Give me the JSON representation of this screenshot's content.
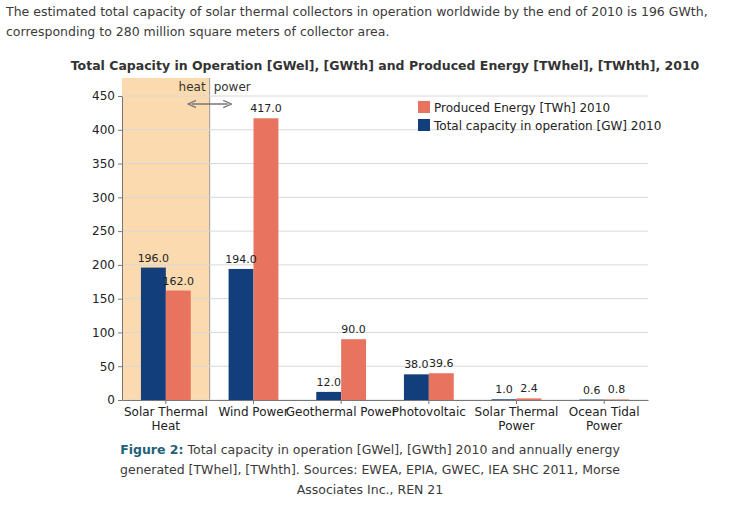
{
  "page": {
    "intro": "The estimated total capacity of solar thermal collectors in operation worldwide by the end of 2010 is 196 GWth, corresponding to 280 million square meters of collector area.",
    "caption_label": "Figure 2:",
    "caption": "Total capacity in operation [GWel], [GWth] 2010 and annually energy generated [TWhel], [TWhth]. Sources: EWEA, EPIA, GWEC, IEA SHC 2011, Morse Associates Inc., REN 21"
  },
  "chart_data": {
    "type": "bar",
    "title": "Total Capacity in Operation [GWel], [GWth] and Produced Energy [TWhel], [TWhth], 2010",
    "annotations": [
      {
        "text": "heat"
      },
      {
        "text": "power"
      }
    ],
    "categories": [
      "Solar Thermal Heat",
      "Wind Power",
      "Geothermal Power",
      "Photovoltaic",
      "Solar Thermal Power",
      "Ocean Tidal Power"
    ],
    "series": [
      {
        "name": "Total capacity in operation [GW] 2010",
        "color": "#123f7c",
        "values": [
          196,
          194,
          12,
          38,
          1.0,
          0.6
        ],
        "value_labels": [
          "196.0",
          "194.0",
          "12.0",
          "38.0",
          "1.0",
          "0.6"
        ]
      },
      {
        "name": "Produced Energy [TWh] 2010",
        "color": "#e8735e",
        "values": [
          162,
          417,
          90,
          39.6,
          2.4,
          0.8
        ],
        "value_labels": [
          "162.0",
          "417.0",
          "90.0",
          "39.6",
          "2.4",
          "0.8"
        ]
      }
    ],
    "ylim": [
      0,
      450
    ],
    "yticks": [
      0,
      50,
      100,
      150,
      200,
      250,
      300,
      350,
      400,
      450
    ],
    "grid": true,
    "legend": "top-right",
    "data_labels": true
  }
}
